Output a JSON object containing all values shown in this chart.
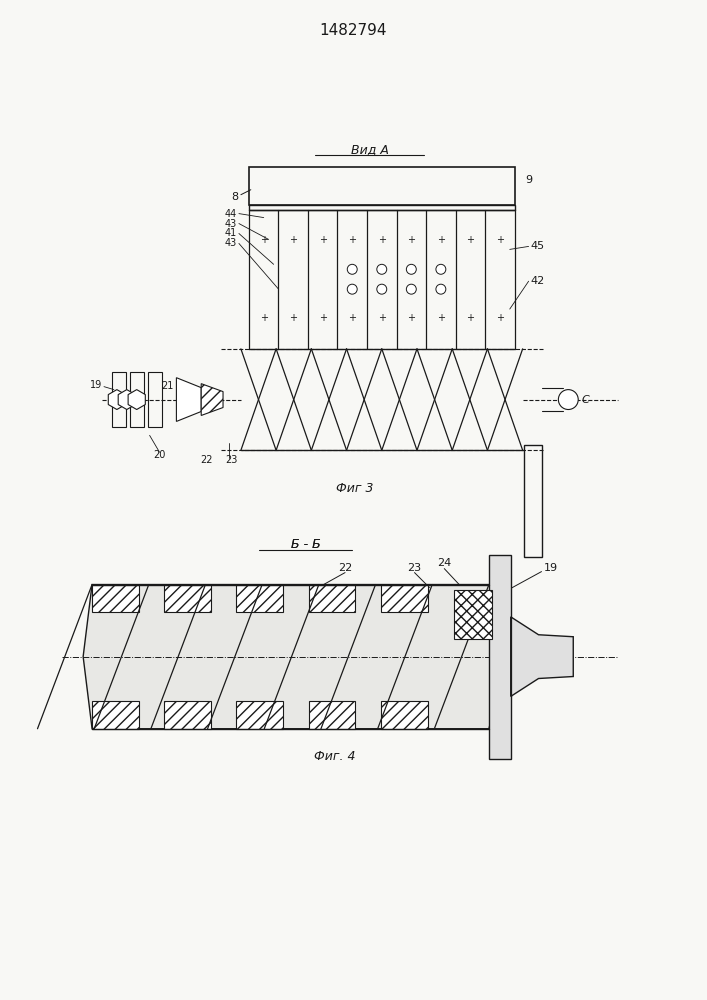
{
  "patent_number": "1482794",
  "fig3_label": "Фиг 3",
  "fig4_label": "Фиг. 4",
  "view_label": "Вид А",
  "section_label": "Б - Б",
  "bg_color": "#f8f8f5",
  "line_color": "#1a1a1a"
}
